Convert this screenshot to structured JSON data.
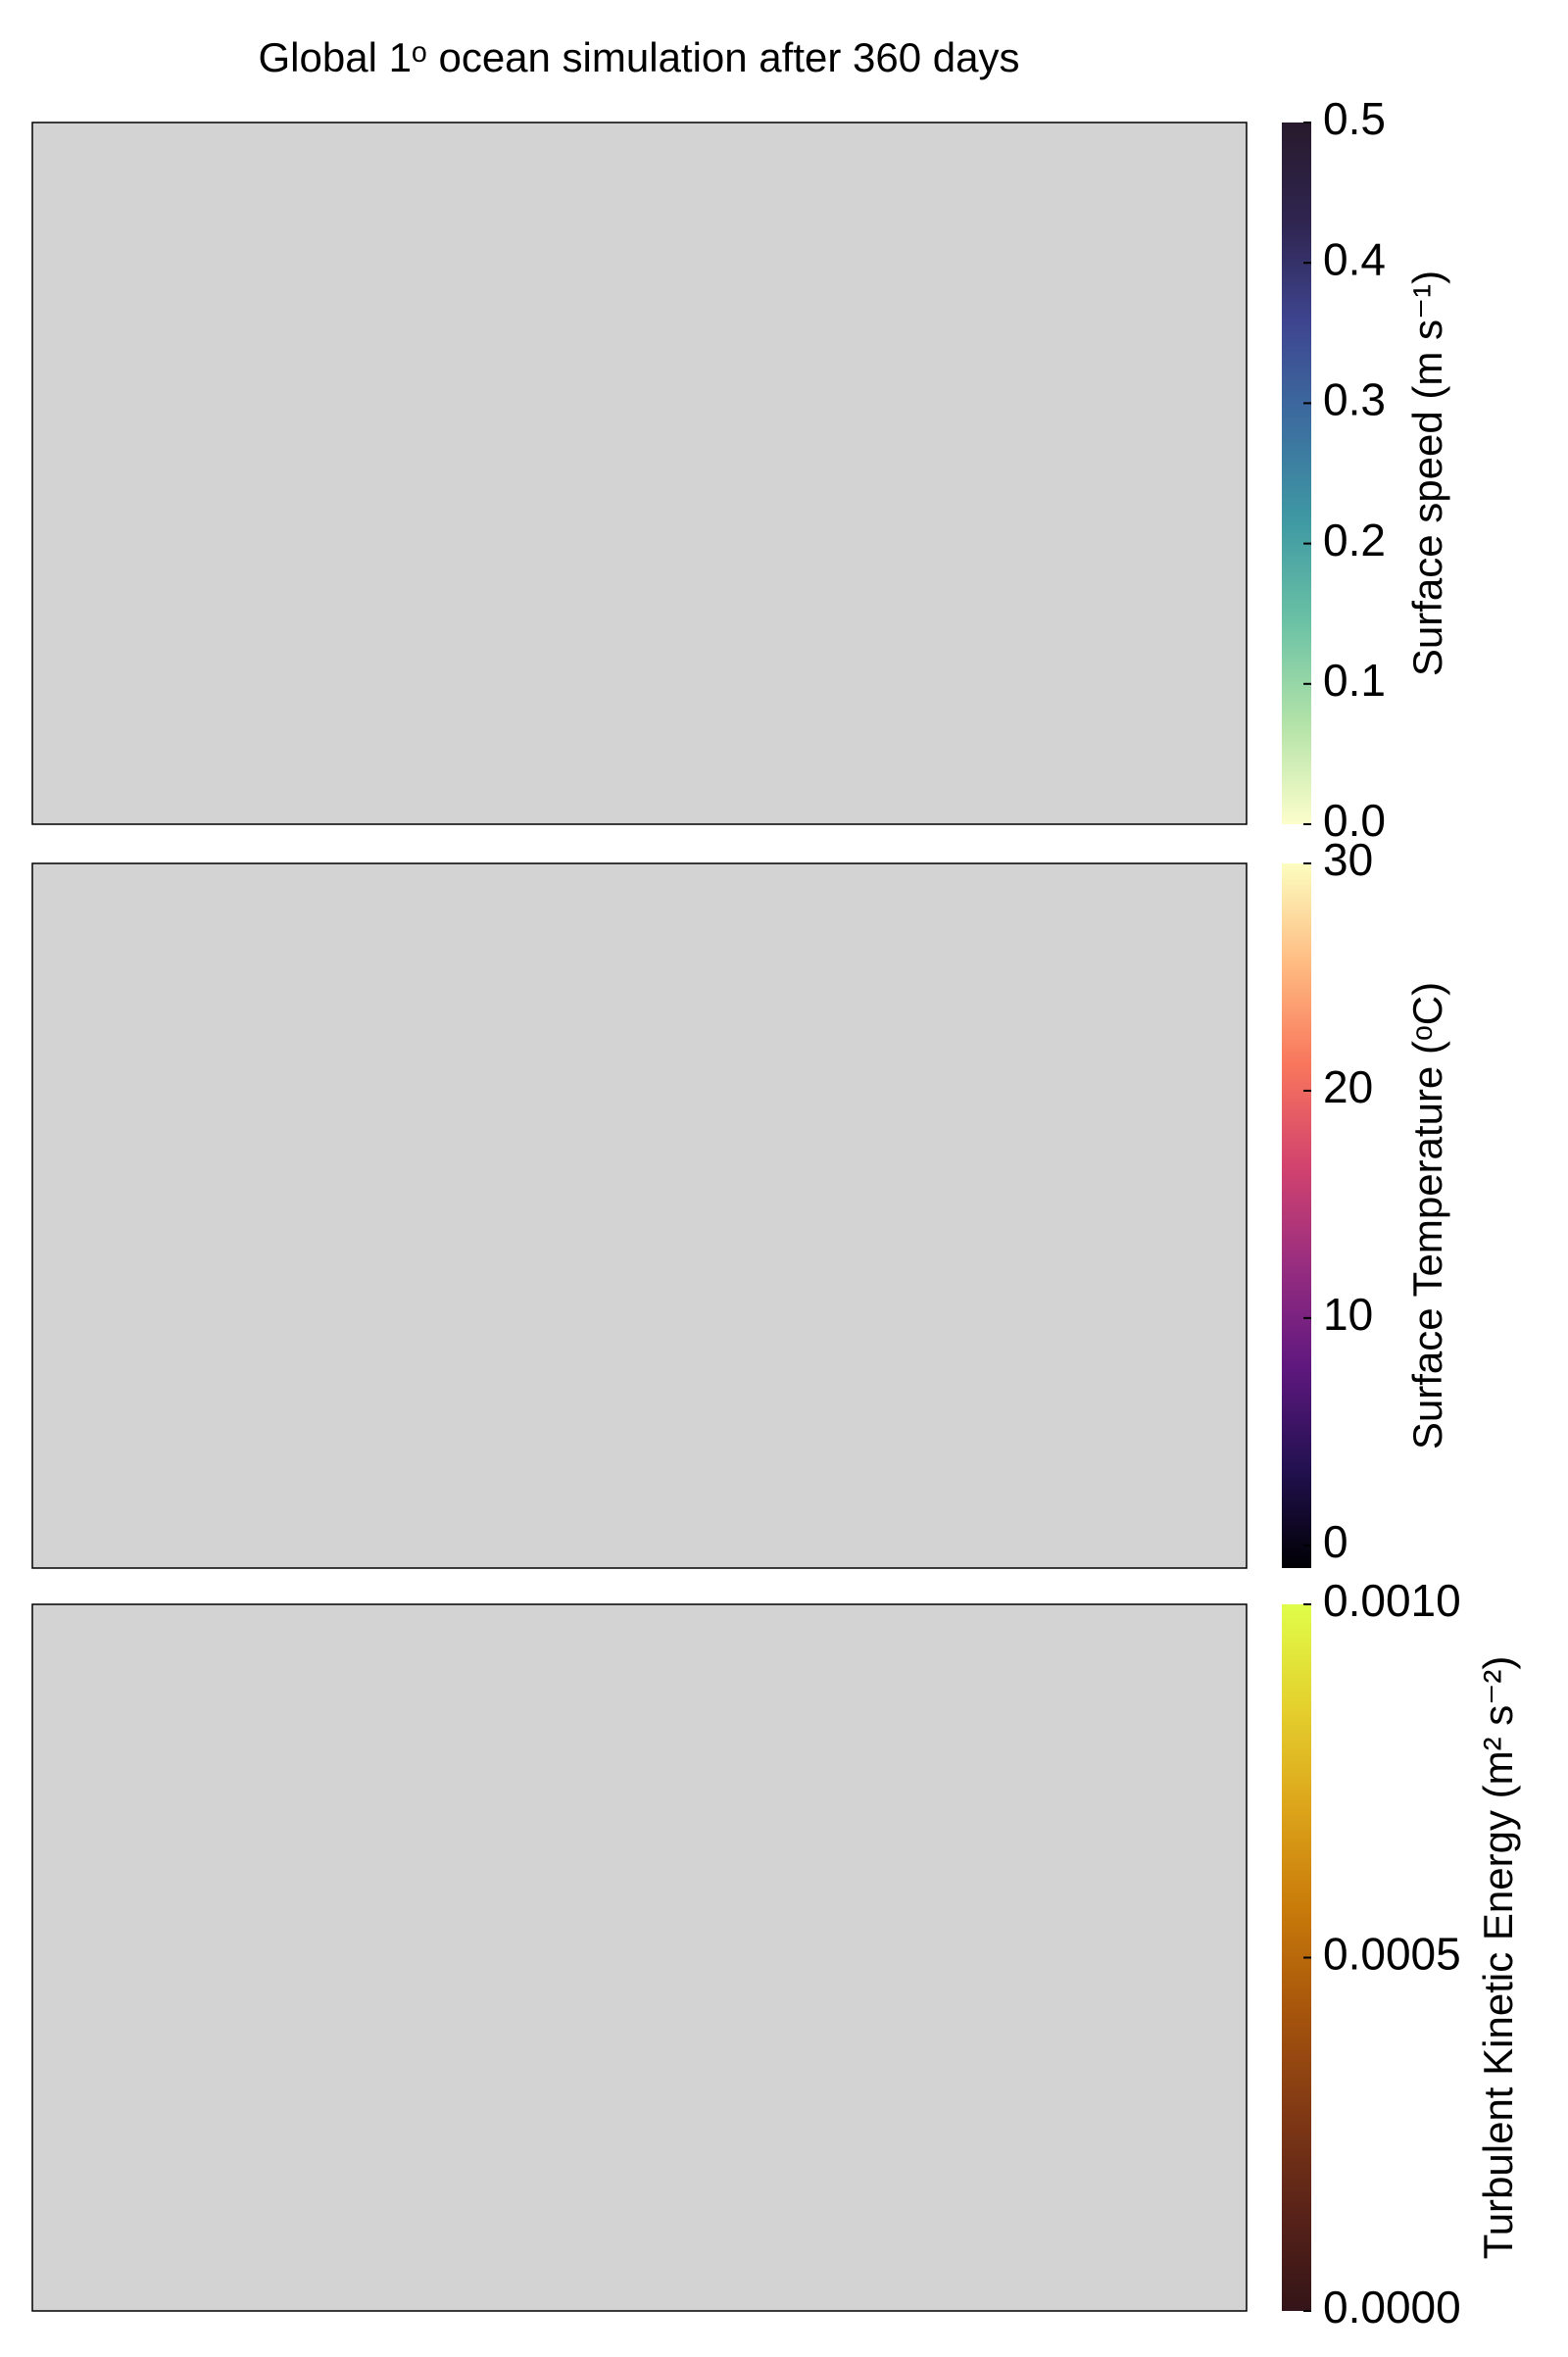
{
  "title": "Global 1ᵒ ocean simulation after 360 days",
  "chart_data": [
    {
      "type": "heatmap",
      "colorbar_label": "Surface speed (m s⁻¹)",
      "clim": [
        0,
        0.5
      ],
      "cticks": [
        {
          "value": 0,
          "label": "0.0"
        },
        0.1,
        0.2,
        0.3,
        0.4,
        0.5
      ],
      "colormap": [
        "#fdfecc",
        "#b3e3a8",
        "#6cc2a5",
        "#3f9aa3",
        "#3c6fa0",
        "#3e4590",
        "#2f2550",
        "#281a2c"
      ],
      "nan_color": "#d3d3d3"
    },
    {
      "type": "heatmap",
      "colorbar_label": "Surface Temperature (ᵒC)",
      "clim": [
        -1,
        30
      ],
      "cticks": [
        0,
        10,
        20,
        30
      ],
      "colormap": [
        "#000004",
        "#231151",
        "#5f187f",
        "#982d80",
        "#d3436e",
        "#f8765c",
        "#febb81",
        "#fcfdbf"
      ],
      "nan_color": "#d3d3d3"
    },
    {
      "type": "heatmap",
      "colorbar_label": "Turbulent Kinetic Energy (m² s⁻²)",
      "clim": [
        0,
        0.001
      ],
      "cticks": [
        {
          "value": 0,
          "label": "0.0000"
        },
        {
          "value": 0.0005,
          "label": "0.0005"
        },
        {
          "value": 0.001,
          "label": "0.0010"
        }
      ],
      "colormap": [
        "#331418",
        "#5a2319",
        "#823a14",
        "#a8560c",
        "#c97b0a",
        "#dda51b",
        "#e4d12e",
        "#e0fd4a"
      ],
      "nan_color": "#d3d3d3"
    }
  ]
}
